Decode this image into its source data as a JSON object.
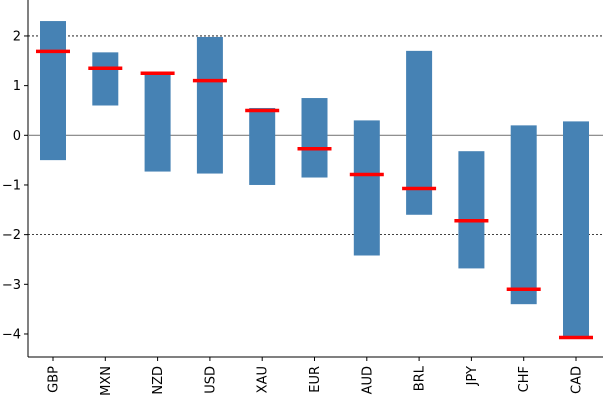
{
  "chart_data": {
    "type": "bar",
    "categories": [
      "GBP",
      "MXN",
      "NZD",
      "USD",
      "XAU",
      "EUR",
      "AUD",
      "BRL",
      "JPY",
      "CHF",
      "CAD"
    ],
    "ranges": [
      {
        "low": -0.5,
        "high": 2.3
      },
      {
        "low": 0.6,
        "high": 1.67
      },
      {
        "low": -0.73,
        "high": 1.25
      },
      {
        "low": -0.77,
        "high": 1.98
      },
      {
        "low": -1.0,
        "high": 0.55
      },
      {
        "low": -0.85,
        "high": 0.75
      },
      {
        "low": -2.42,
        "high": 0.3
      },
      {
        "low": -1.6,
        "high": 1.7
      },
      {
        "low": -2.68,
        "high": -0.32
      },
      {
        "low": -3.4,
        "high": 0.2
      },
      {
        "low": -4.07,
        "high": 0.28
      }
    ],
    "markers": [
      1.69,
      1.35,
      1.25,
      1.1,
      0.5,
      -0.27,
      -0.79,
      -1.07,
      -1.72,
      -3.1,
      -4.07
    ],
    "ylim": [
      -4.5,
      2.7
    ],
    "yticks": [
      -4,
      -3,
      -2,
      -1,
      0,
      1,
      2
    ],
    "ytick_labels": [
      "−4",
      "−3",
      "−2",
      "−1",
      "0",
      "1",
      "2"
    ],
    "reference_lines": {
      "solid": [
        0
      ],
      "dotted": [
        2,
        -2
      ]
    },
    "grid": false,
    "title": "",
    "xlabel": "",
    "ylabel": "",
    "colors": {
      "bar": "#4682b4",
      "marker": "#ff0000",
      "zero_line": "#808080",
      "dotted_line": "#000000"
    }
  }
}
